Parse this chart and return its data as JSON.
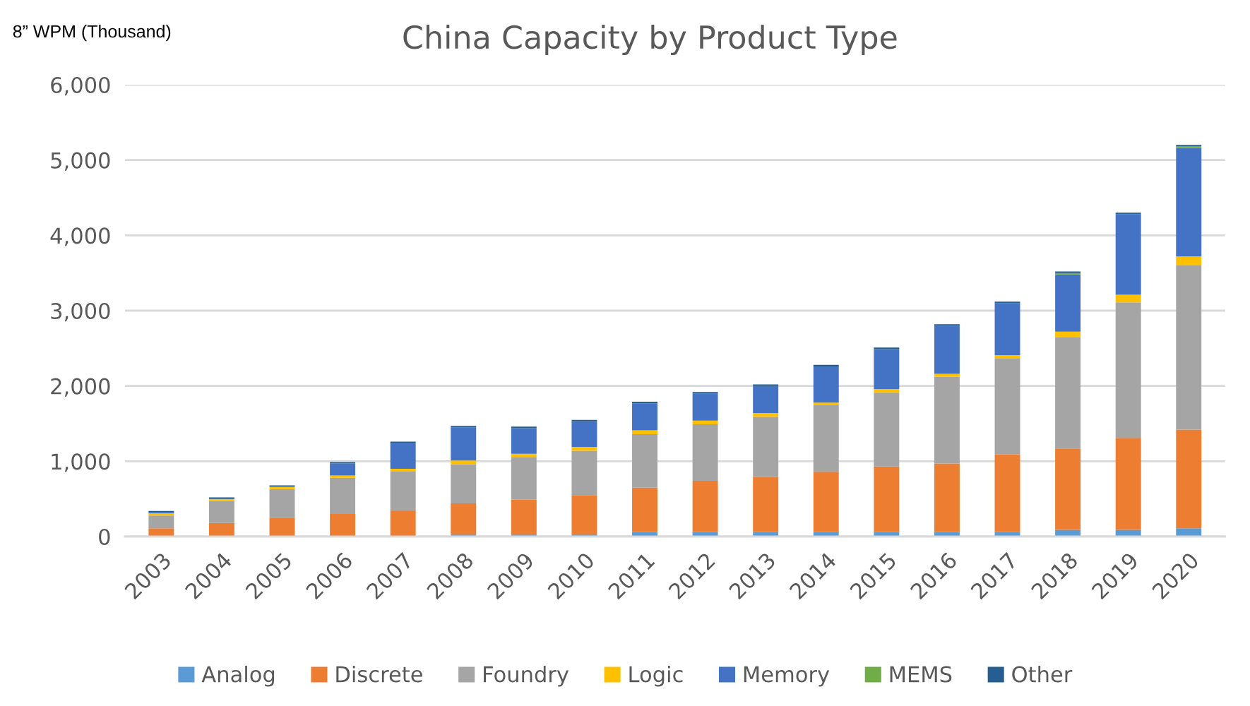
{
  "chart_data": {
    "type": "bar",
    "title": "China Capacity by Product Type",
    "ylabel": "8” WPM (Thousand)",
    "stacked": true,
    "categories": [
      "2003",
      "2004",
      "2005",
      "2006",
      "2007",
      "2008",
      "2009",
      "2010",
      "2011",
      "2012",
      "2013",
      "2014",
      "2015",
      "2016",
      "2017",
      "2018",
      "2019",
      "2020"
    ],
    "series": [
      {
        "name": "Analog",
        "color": "#5b9bd5",
        "values": [
          null,
          null,
          null,
          null,
          null,
          30,
          30,
          30,
          60,
          60,
          60,
          60,
          60,
          60,
          60,
          90,
          90,
          110
        ]
      },
      {
        "name": "Discrete",
        "color": "#ed7d31",
        "values": [
          110,
          180,
          250,
          300,
          350,
          410,
          460,
          520,
          590,
          680,
          730,
          800,
          870,
          910,
          1030,
          1080,
          1220,
          1310
        ]
      },
      {
        "name": "Foundry",
        "color": "#a5a5a5",
        "values": [
          170,
          290,
          380,
          480,
          520,
          520,
          560,
          590,
          710,
          750,
          800,
          890,
          980,
          1150,
          1280,
          1480,
          1800,
          2180
        ]
      },
      {
        "name": "Logic",
        "color": "#ffc000",
        "values": [
          30,
          30,
          30,
          30,
          30,
          50,
          50,
          50,
          50,
          50,
          50,
          30,
          50,
          40,
          40,
          70,
          100,
          120
        ]
      },
      {
        "name": "Memory",
        "color": "#4472c4",
        "values": [
          10,
          null,
          null,
          160,
          340,
          440,
          340,
          340,
          360,
          360,
          360,
          480,
          530,
          640,
          690,
          760,
          1070,
          1440
        ]
      },
      {
        "name": "MEMS",
        "color": "#70ad47",
        "values": [
          null,
          null,
          null,
          null,
          null,
          null,
          null,
          null,
          null,
          null,
          null,
          null,
          null,
          null,
          null,
          20,
          null,
          20
        ]
      },
      {
        "name": "Other",
        "color": "#255e91",
        "values": [
          20,
          20,
          20,
          20,
          20,
          20,
          20,
          20,
          20,
          20,
          20,
          20,
          20,
          20,
          20,
          20,
          20,
          20
        ]
      }
    ],
    "ylim": [
      0,
      6000
    ],
    "yticks": [
      0,
      {
        "value": 1000,
        "label": "1,000"
      },
      {
        "value": 2000,
        "label": "2,000"
      },
      {
        "value": 3000,
        "label": "3,000"
      },
      {
        "value": 4000,
        "label": "4,000"
      },
      {
        "value": 5000,
        "label": "5,000"
      },
      {
        "value": 6000,
        "label": "6,000"
      }
    ],
    "grid": "y",
    "legend": "bottom"
  }
}
